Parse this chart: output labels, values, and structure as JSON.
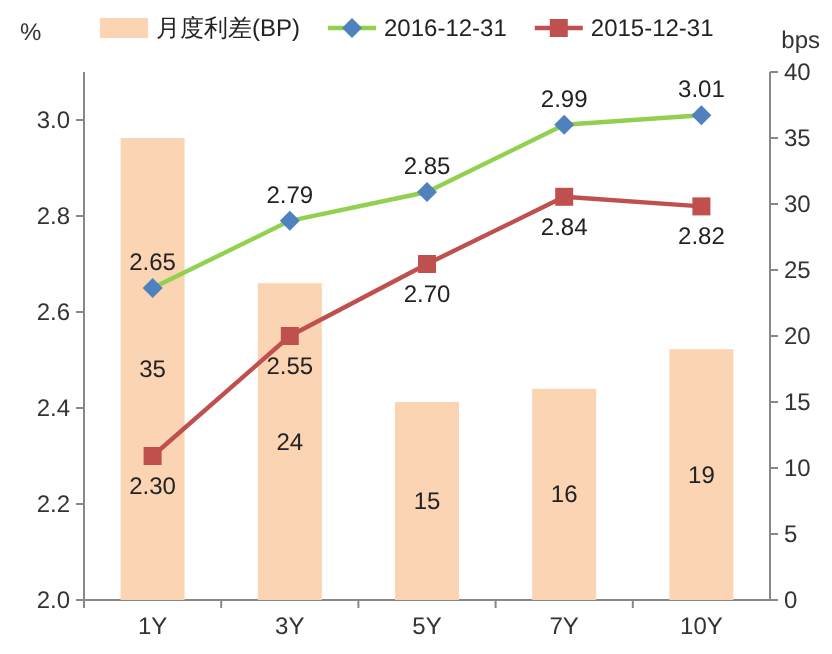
{
  "chart_data": {
    "type": "bar",
    "categories": [
      "1Y",
      "3Y",
      "5Y",
      "7Y",
      "10Y"
    ],
    "ylabel": "%",
    "y2label": "bps",
    "ylim": [
      2.0,
      3.1
    ],
    "yticks": [
      {
        "value": 2.0,
        "label": "2.0"
      },
      {
        "value": 2.2,
        "label": "2.2"
      },
      {
        "value": 2.4,
        "label": "2.4"
      },
      {
        "value": 2.6,
        "label": "2.6"
      },
      {
        "value": 2.8,
        "label": "2.8"
      },
      {
        "value": 3.0,
        "label": "3.0"
      }
    ],
    "y2lim": [
      0,
      40
    ],
    "y2ticks": [
      0,
      5,
      10,
      15,
      20,
      25,
      30,
      35,
      40
    ],
    "legend": "top",
    "grid": false,
    "series": [
      {
        "name": "月度利差(BP)",
        "axis": "y2",
        "color": "#fbd4b4",
        "values": [
          35,
          24,
          15,
          16,
          19
        ],
        "value_labels": [
          "35",
          "24",
          "15",
          "16",
          "19"
        ]
      },
      {
        "name": "2016-12-31",
        "type": "line",
        "marker": "diamond",
        "color": "#92d050",
        "colors": [
          "#4f81bd",
          "#4f81bd",
          "#4f81bd",
          "#4f81bd",
          "#4f81bd"
        ],
        "values": [
          2.65,
          2.79,
          2.85,
          2.99,
          3.01
        ],
        "value_labels": [
          "2.65",
          "2.79",
          "2.85",
          "2.99",
          "3.01"
        ]
      },
      {
        "name": "2015-12-31",
        "type": "line",
        "marker": "square",
        "color": "#c0504d",
        "values": [
          2.3,
          2.55,
          2.7,
          2.84,
          2.82
        ],
        "value_labels": [
          "2.30",
          "2.55",
          "2.70",
          "2.84",
          "2.82"
        ]
      }
    ]
  }
}
